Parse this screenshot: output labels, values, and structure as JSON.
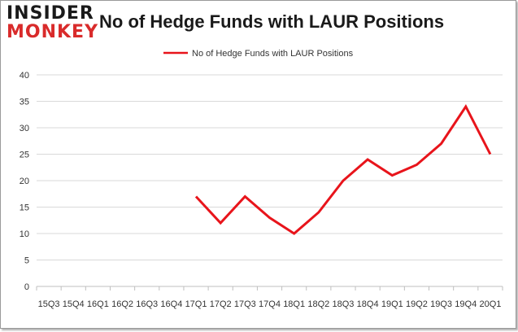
{
  "brand": {
    "line1": "INSIDER",
    "line2": "MONKEY"
  },
  "chart_data": {
    "type": "line",
    "title": "No of Hedge Funds with LAUR Positions",
    "xlabel": "",
    "ylabel": "",
    "categories": [
      "15Q3",
      "15Q4",
      "16Q1",
      "16Q2",
      "16Q3",
      "16Q4",
      "17Q1",
      "17Q2",
      "17Q3",
      "17Q4",
      "18Q1",
      "18Q2",
      "18Q3",
      "18Q4",
      "19Q1",
      "19Q2",
      "19Q3",
      "19Q4",
      "20Q1"
    ],
    "series": [
      {
        "name": "No of Hedge Funds with LAUR Positions",
        "values": [
          null,
          null,
          null,
          null,
          null,
          null,
          17,
          12,
          17,
          13,
          10,
          14,
          20,
          24,
          21,
          23,
          27,
          34,
          25
        ]
      }
    ],
    "ylim": [
      0,
      40
    ],
    "yticks": [
      0,
      5,
      10,
      15,
      20,
      25,
      30,
      35,
      40
    ],
    "grid": true,
    "legend": "top-center",
    "colors": {
      "series": "#e8141b",
      "grid": "#d9d9d9",
      "axis": "#bfbfbf"
    }
  }
}
